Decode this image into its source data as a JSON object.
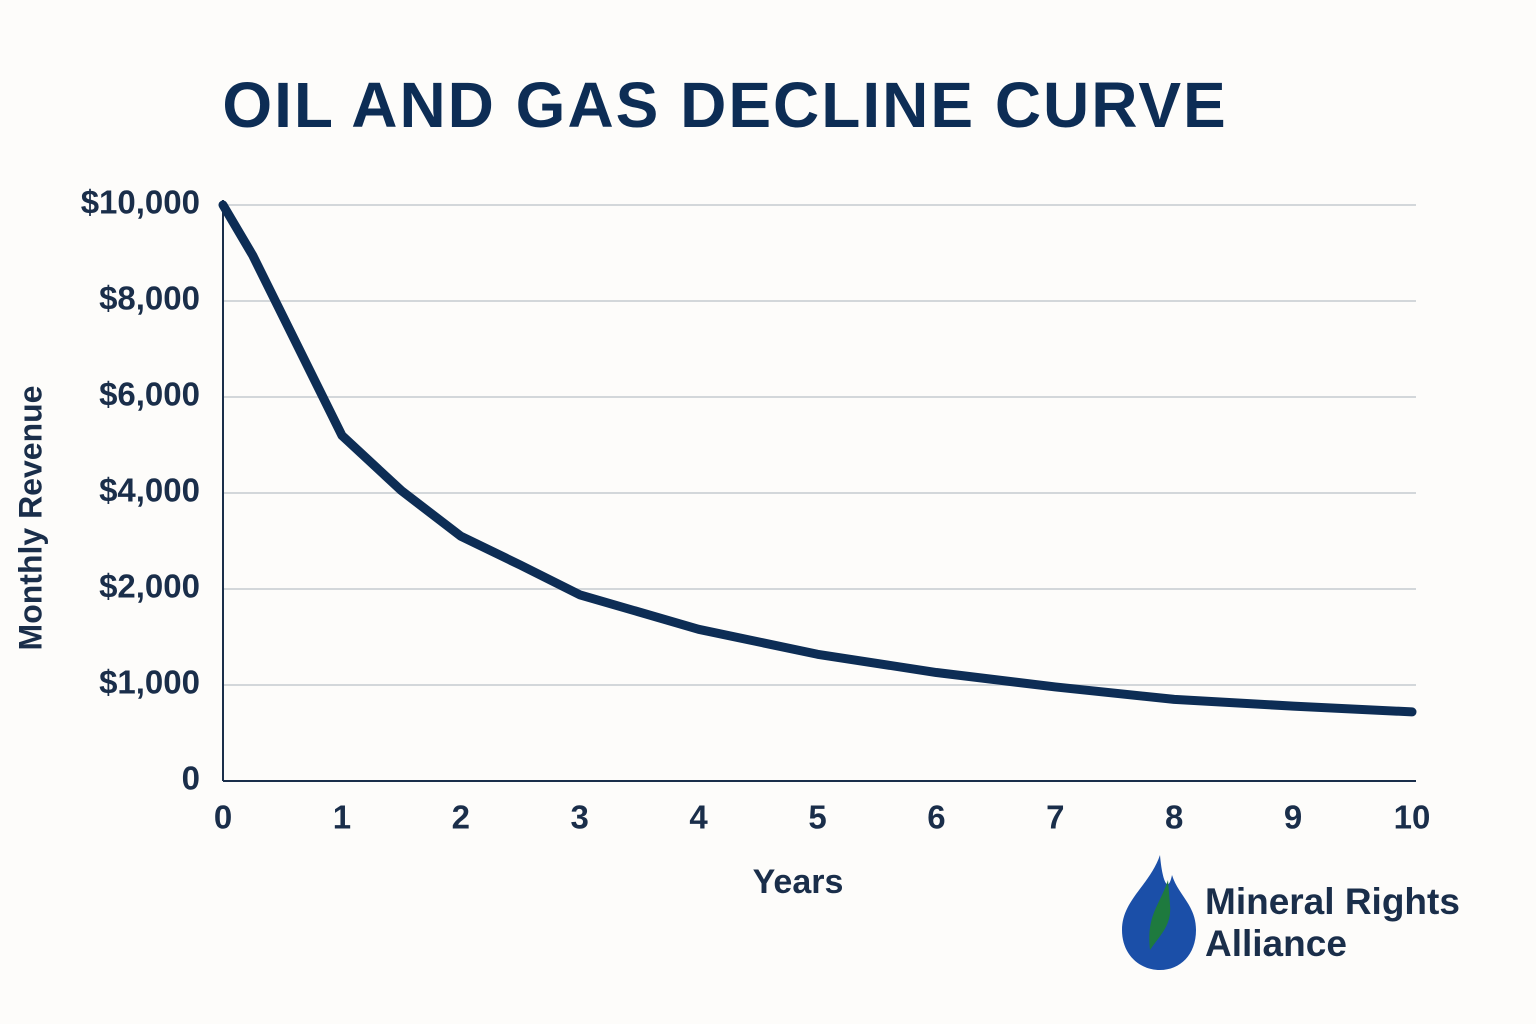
{
  "chart_data": {
    "type": "line",
    "title": "OIL AND GAS DECLINE CURVE",
    "x_label": "Years",
    "y_label": "Monthly Revenue",
    "x": [
      0,
      0.25,
      0.5,
      1,
      1.5,
      2,
      2.5,
      3,
      4,
      5,
      6,
      7,
      8,
      9,
      10
    ],
    "series": [
      {
        "name": "Monthly Revenue",
        "color": "#0d2d55",
        "values": [
          10000,
          8950,
          7700,
          5200,
          4050,
          3100,
          2500,
          1940,
          1580,
          1320,
          1130,
          980,
          850,
          780,
          720
        ]
      }
    ],
    "xlim": [
      0,
      10
    ],
    "xticks": [
      0,
      1,
      2,
      3,
      4,
      5,
      6,
      7,
      8,
      9,
      10
    ],
    "ylim": [
      0,
      10000
    ],
    "yticks": [
      0,
      {
        "value": 1000,
        "label": "$1,000"
      },
      {
        "value": 2000,
        "label": "$2,000"
      },
      {
        "value": 4000,
        "label": "$4,000"
      },
      {
        "value": 6000,
        "label": "$6,000"
      },
      {
        "value": 8000,
        "label": "$8,000"
      },
      {
        "value": 10000,
        "label": "$10,000"
      }
    ],
    "grid": true
  },
  "logo": {
    "line1": "Mineral Rights",
    "line2": "Alliance"
  }
}
